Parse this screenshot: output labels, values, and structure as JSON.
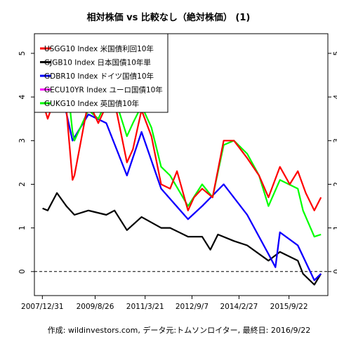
{
  "chart_data": {
    "type": "line",
    "title": "相対株価 vs 比較なし（絶対株価） (1)",
    "caption": "作成: wildinvestors.com, データ元:トムソンロイター, 最終日: 2016/9/22",
    "x_tick_labels": [
      "2007/12/31",
      "2009/8/26",
      "2011/3/21",
      "2012/9/7",
      "2014/2/27",
      "2015/9/22"
    ],
    "x_ticks": [
      "2007-12-31",
      "2009-08-26",
      "2011-03-21",
      "2012-09-07",
      "2014-02-27",
      "2015-09-22"
    ],
    "y_ticks": [
      0,
      1,
      2,
      3,
      4,
      5
    ],
    "ylim": [
      -0.55,
      5.45
    ],
    "xlim": [
      "2007-10-01",
      "2016-12-10"
    ],
    "reference_line": {
      "y": 0,
      "style": "dashed"
    },
    "legend": {
      "position": "top-left"
    },
    "grid": false,
    "series": [
      {
        "name": "USGG10 Index 米国債利回10年",
        "color": "#ff0000",
        "x": [
          "2008-01-02",
          "2008-03-01",
          "2008-06-15",
          "2008-10-01",
          "2008-12-10",
          "2009-01-01",
          "2009-06-10",
          "2009-10-01",
          "2010-01-01",
          "2010-04-05",
          "2010-08-25",
          "2010-11-01",
          "2011-02-08",
          "2011-06-01",
          "2011-09-20",
          "2012-01-01",
          "2012-03-20",
          "2012-07-24",
          "2012-10-01",
          "2013-01-01",
          "2013-05-01",
          "2013-09-05",
          "2013-12-31",
          "2014-06-01",
          "2014-10-15",
          "2015-01-30",
          "2015-06-10",
          "2015-10-01",
          "2016-01-01",
          "2016-04-01",
          "2016-07-08",
          "2016-09-22"
        ],
        "y": [
          3.9,
          3.5,
          4.1,
          3.7,
          2.1,
          2.2,
          3.9,
          3.4,
          3.8,
          3.9,
          2.5,
          2.8,
          3.7,
          3.1,
          2.0,
          1.9,
          2.3,
          1.4,
          1.7,
          1.9,
          1.7,
          3.0,
          3.0,
          2.6,
          2.2,
          1.7,
          2.4,
          2.0,
          2.3,
          1.8,
          1.4,
          1.7
        ]
      },
      {
        "name": "GJGB10 Index 日本国債10年単",
        "color": "#000000",
        "x": [
          "2008-01-02",
          "2008-03-01",
          "2008-06-15",
          "2008-10-01",
          "2009-01-01",
          "2009-06-10",
          "2010-01-01",
          "2010-04-05",
          "2010-08-25",
          "2011-02-08",
          "2011-09-20",
          "2012-01-01",
          "2012-07-24",
          "2013-01-01",
          "2013-04-05",
          "2013-07-01",
          "2014-01-01",
          "2014-06-01",
          "2015-01-30",
          "2015-06-10",
          "2016-01-01",
          "2016-03-01",
          "2016-07-08",
          "2016-09-22"
        ],
        "y": [
          1.45,
          1.4,
          1.8,
          1.5,
          1.3,
          1.4,
          1.3,
          1.4,
          0.95,
          1.25,
          1.0,
          1.0,
          0.8,
          0.8,
          0.5,
          0.85,
          0.7,
          0.6,
          0.25,
          0.45,
          0.25,
          -0.05,
          -0.3,
          -0.05
        ]
      },
      {
        "name": "GDBR10 Index ドイツ国債10年",
        "color": "#0000ff",
        "x": [
          "2008-01-02",
          "2008-06-15",
          "2008-12-10",
          "2009-06-10",
          "2010-01-01",
          "2010-08-25",
          "2011-02-08",
          "2011-09-20",
          "2012-07-24",
          "2013-01-01",
          "2013-09-05",
          "2014-06-01",
          "2015-01-30",
          "2015-04-20",
          "2015-06-10",
          "2016-01-01",
          "2016-07-08",
          "2016-09-22"
        ],
        "y": [
          4.3,
          4.6,
          3.0,
          3.6,
          3.4,
          2.2,
          3.2,
          1.9,
          1.2,
          1.5,
          2.0,
          1.3,
          0.4,
          0.1,
          0.9,
          0.6,
          -0.2,
          -0.05
        ]
      },
      {
        "name": "GECU10YR Index ユーロ国債10年",
        "color": "#ff00ff",
        "x": [
          "2008-01-02",
          "2008-06-15",
          "2008-12-10",
          "2009-06-10",
          "2010-01-01",
          "2010-08-25",
          "2011-02-08",
          "2011-09-20",
          "2012-07-24",
          "2013-01-01",
          "2013-09-05",
          "2014-06-01",
          "2015-01-30",
          "2015-04-20",
          "2015-06-10",
          "2016-01-01",
          "2016-07-08",
          "2016-09-22"
        ],
        "y": [
          4.3,
          4.6,
          3.0,
          3.6,
          3.4,
          2.2,
          3.2,
          1.9,
          1.2,
          1.5,
          2.0,
          1.3,
          0.4,
          0.1,
          0.9,
          0.6,
          -0.2,
          -0.05
        ]
      },
      {
        "name": "GUKG10 Index 英国債10年",
        "color": "#00ff00",
        "x": [
          "2008-01-02",
          "2008-03-01",
          "2008-06-15",
          "2008-10-01",
          "2008-12-10",
          "2009-01-01",
          "2009-06-10",
          "2009-10-01",
          "2010-01-01",
          "2010-04-05",
          "2010-08-25",
          "2010-11-01",
          "2011-02-08",
          "2011-06-01",
          "2011-09-20",
          "2012-01-01",
          "2012-07-24",
          "2013-01-01",
          "2013-05-01",
          "2013-09-05",
          "2013-12-31",
          "2014-06-01",
          "2014-10-15",
          "2015-01-30",
          "2015-06-10",
          "2016-01-01",
          "2016-03-01",
          "2016-07-08",
          "2016-09-22"
        ],
        "y": [
          4.6,
          4.4,
          5.1,
          4.5,
          3.2,
          3.0,
          3.7,
          3.5,
          3.9,
          4.0,
          3.1,
          3.4,
          3.8,
          3.3,
          2.4,
          2.2,
          1.5,
          2.0,
          1.7,
          2.9,
          3.0,
          2.7,
          2.2,
          1.5,
          2.1,
          1.9,
          1.4,
          0.8,
          0.85
        ]
      }
    ]
  }
}
